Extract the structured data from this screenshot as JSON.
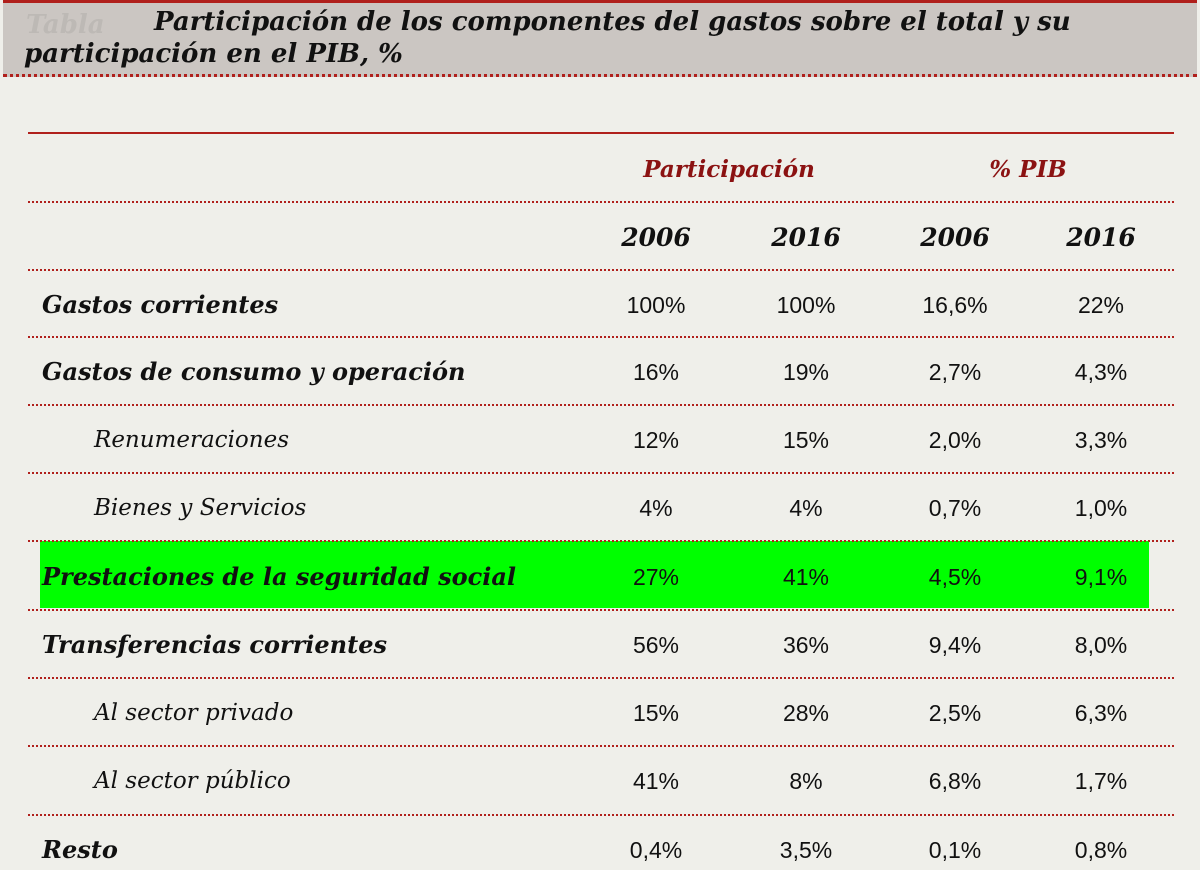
{
  "title": "Participación  de los componentes del gastos sobre el total y su participación en el PIB, %",
  "title_ghost": "Tabla",
  "colors": {
    "accent": "#b0201c",
    "header_text": "#8b1212",
    "highlight": "#00ff00",
    "title_band": "#cbc6c2",
    "background": "#efefea"
  },
  "chart_data": {
    "type": "table",
    "title": "Participación  de los componentes del gastos sobre el total y su participación en el PIB, %",
    "column_groups": [
      "Participación",
      "% PIB"
    ],
    "years": [
      "2006",
      "2016",
      "2006",
      "2016"
    ],
    "rows": [
      {
        "label": "Gastos corrientes",
        "level": "main",
        "highlight": false,
        "values": [
          "100%",
          "100%",
          "16,6%",
          "22%"
        ]
      },
      {
        "label": "Gastos de consumo y operación",
        "level": "main",
        "highlight": false,
        "values": [
          "16%",
          "19%",
          "2,7%",
          "4,3%"
        ]
      },
      {
        "label": "Renumeraciones",
        "level": "sub",
        "highlight": false,
        "values": [
          "12%",
          "15%",
          "2,0%",
          "3,3%"
        ]
      },
      {
        "label": "Bienes y Servicios",
        "level": "sub",
        "highlight": false,
        "values": [
          "4%",
          "4%",
          "0,7%",
          "1,0%"
        ]
      },
      {
        "label": "Prestaciones de la seguridad social",
        "level": "main",
        "highlight": true,
        "values": [
          "27%",
          "41%",
          "4,5%",
          "9,1%"
        ]
      },
      {
        "label": "Transferencias corrientes",
        "level": "main",
        "highlight": false,
        "values": [
          "56%",
          "36%",
          "9,4%",
          "8,0%"
        ]
      },
      {
        "label": "Al sector privado",
        "level": "sub",
        "highlight": false,
        "values": [
          "15%",
          "28%",
          "2,5%",
          "6,3%"
        ]
      },
      {
        "label": "Al sector público",
        "level": "sub",
        "highlight": false,
        "values": [
          "41%",
          "8%",
          "6,8%",
          "1,7%"
        ]
      },
      {
        "label": "Resto",
        "level": "main",
        "highlight": false,
        "values": [
          "0,4%",
          "3,5%",
          "0,1%",
          "0,8%"
        ]
      }
    ]
  }
}
